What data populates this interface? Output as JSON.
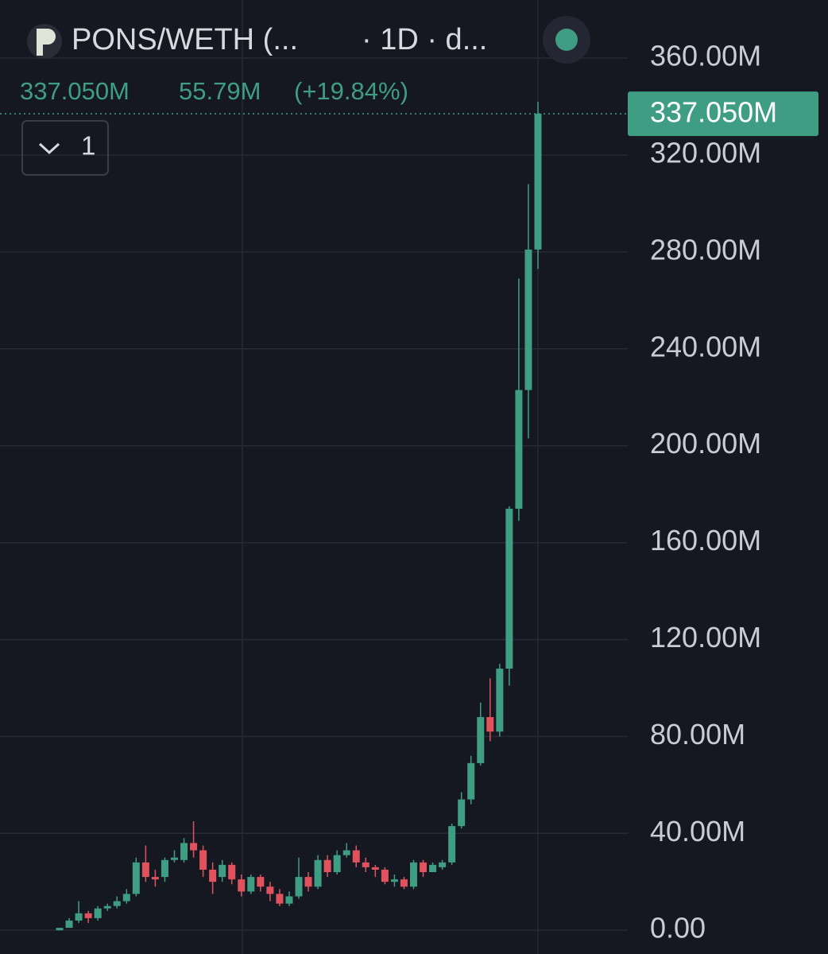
{
  "chart_data": {
    "type": "candlestick",
    "title": "PONS/WETH (...",
    "subtitle": "· 1D · d...",
    "last": {
      "value": 337.05,
      "label": "337.050M"
    },
    "change": "55.79M",
    "change_percent": "(+19.84%)",
    "legend_count": "1",
    "categories": [
      null,
      null,
      null,
      null,
      null,
      null,
      null,
      null,
      null,
      null,
      null,
      null,
      null,
      null,
      null,
      null,
      null,
      null,
      null,
      null,
      null,
      null,
      null,
      null,
      null,
      null,
      null,
      null,
      null,
      null,
      null,
      null,
      null,
      null,
      null,
      null,
      null,
      null,
      null,
      null,
      null,
      null,
      null,
      null,
      null,
      null,
      null,
      null,
      null,
      null,
      null
    ],
    "open": [
      0,
      1,
      4,
      7,
      5,
      9,
      10,
      12,
      15,
      28,
      22,
      22,
      29,
      29,
      36,
      33,
      25,
      22,
      27,
      21,
      16,
      22,
      18,
      15,
      11,
      14,
      22,
      18,
      29,
      24,
      31,
      33,
      28,
      26,
      25,
      20,
      21,
      18,
      28,
      24,
      26,
      28,
      43,
      54,
      69,
      88,
      82,
      108,
      174,
      223,
      281
    ],
    "high": [
      1,
      5,
      12,
      8,
      10,
      11,
      14,
      17,
      30,
      35,
      25,
      30,
      33,
      38,
      45,
      35,
      28,
      29,
      28,
      23,
      23,
      23,
      20,
      17,
      16,
      30,
      24,
      31,
      31,
      33,
      36,
      35,
      30,
      27,
      26,
      23,
      22,
      29,
      29,
      28,
      29,
      44,
      57,
      72,
      94,
      104,
      110,
      175,
      269,
      308,
      342
    ],
    "low": [
      0,
      1,
      3,
      3,
      4,
      8,
      9,
      11,
      14,
      20,
      18,
      20,
      28,
      28,
      30,
      22,
      15,
      20,
      19,
      14,
      15,
      16,
      12,
      10,
      10,
      13,
      16,
      17,
      22,
      23,
      30,
      26,
      24,
      22,
      19,
      18,
      17,
      17,
      22,
      24,
      25,
      27,
      42,
      52,
      68,
      78,
      80,
      101,
      169,
      203,
      273
    ],
    "close": [
      1,
      4,
      7,
      5,
      9,
      10,
      12,
      15,
      28,
      22,
      21,
      29,
      30,
      36,
      33,
      25,
      20,
      27,
      21,
      16,
      22,
      18,
      15,
      11,
      14,
      22,
      18,
      29,
      24,
      31,
      33,
      28,
      26,
      25,
      20,
      21,
      18,
      28,
      24,
      27,
      28,
      43,
      54,
      69,
      88,
      82,
      108,
      174,
      223,
      281,
      337.05
    ],
    "up_color": "#3f9d84",
    "down_color": "#e0525d",
    "ylim": [
      -9.8,
      384
    ],
    "yticks": [
      {
        "value": 0,
        "label": "0.00"
      },
      {
        "value": 40,
        "label": "40.00M"
      },
      {
        "value": 80,
        "label": "80.00M"
      },
      {
        "value": 120,
        "label": "120.00M"
      },
      {
        "value": 160,
        "label": "160.00M"
      },
      {
        "value": 200,
        "label": "200.00M"
      },
      {
        "value": 240,
        "label": "240.00M"
      },
      {
        "value": 280,
        "label": "280.00M"
      },
      {
        "value": 320,
        "label": "320.00M"
      },
      {
        "value": 360,
        "label": "360.00M"
      }
    ],
    "grid": true
  }
}
